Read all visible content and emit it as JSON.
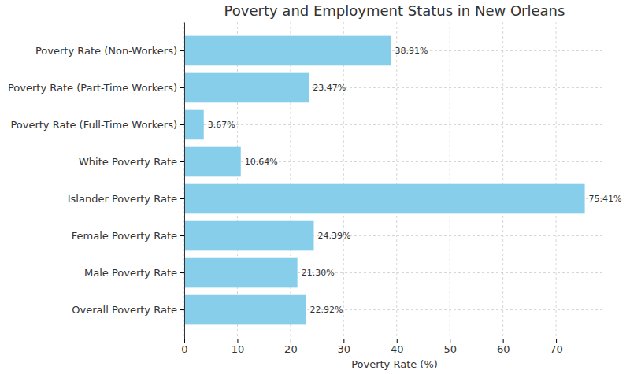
{
  "chart_data": {
    "type": "bar",
    "title": "Poverty and Employment Status in New Orleans",
    "x_label": "Poverty Rate (%)",
    "categories": [
      "Poverty Rate (Non-Workers)",
      "Poverty Rate (Part-Time Workers)",
      "Poverty Rate (Full-Time Workers)",
      "White Poverty Rate",
      "Islander Poverty Rate",
      "Female Poverty Rate",
      "Male Poverty Rate",
      "Overall Poverty Rate"
    ],
    "values": [
      38.91,
      23.47,
      3.67,
      10.64,
      75.41,
      24.39,
      21.3,
      22.92
    ],
    "value_labels": [
      "38.91%",
      "23.47%",
      "3.67%",
      "10.64%",
      "75.41%",
      "24.39%",
      "21.30%",
      "22.92%"
    ],
    "color": "#87ceeb",
    "orientation": "horizontal",
    "data_labels": true,
    "xlim": [
      0,
      79.18
    ],
    "xticks": [
      0,
      10,
      20,
      30,
      40,
      50,
      60,
      70
    ],
    "grid": true
  }
}
